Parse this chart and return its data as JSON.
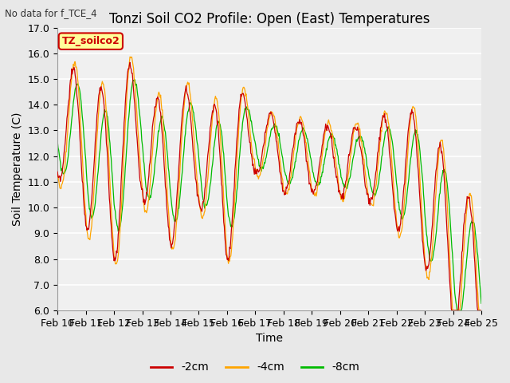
{
  "title": "Tonzi Soil CO2 Profile: Open (East) Temperatures",
  "suptitle": "No data for f_TCE_4",
  "xlabel": "Time",
  "ylabel": "Soil Temperature (C)",
  "ylim": [
    6.0,
    17.0
  ],
  "yticks": [
    6.0,
    7.0,
    8.0,
    9.0,
    10.0,
    11.0,
    12.0,
    13.0,
    14.0,
    15.0,
    16.0,
    17.0
  ],
  "xtick_labels": [
    "Feb 10",
    "Feb 11",
    "Feb 12",
    "Feb 13",
    "Feb 14",
    "Feb 15",
    "Feb 16",
    "Feb 17",
    "Feb 18",
    "Feb 19",
    "Feb 20",
    "Feb 21",
    "Feb 22",
    "Feb 23",
    "Feb 24",
    "Feb 25"
  ],
  "legend_label": "TZ_soilco2",
  "legend_box_color": "#FFFF99",
  "legend_box_edge": "#CC0000",
  "line_labels": [
    "-2cm",
    "-4cm",
    "-8cm"
  ],
  "line_colors": [
    "#CC0000",
    "#FFA500",
    "#00BB00"
  ],
  "bg_color": "#E8E8E8",
  "plot_bg_color": "#F0F0F0",
  "grid_color": "#FFFFFF",
  "title_fontsize": 12,
  "tick_fontsize": 9,
  "label_fontsize": 10
}
